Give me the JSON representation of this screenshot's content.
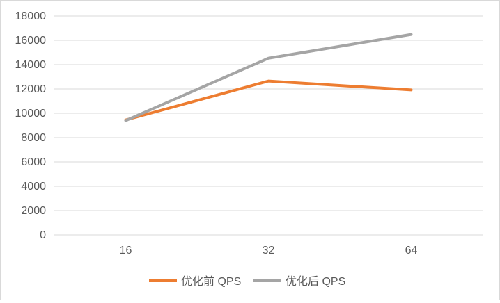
{
  "chart_data": {
    "type": "line",
    "categories": [
      "16",
      "32",
      "64"
    ],
    "series": [
      {
        "name": "优化前 QPS",
        "values": [
          9450,
          12650,
          11920
        ],
        "color": "#ED7D31"
      },
      {
        "name": "优化后 QPS",
        "values": [
          9400,
          14530,
          16480
        ],
        "color": "#A5A5A5"
      }
    ],
    "ylim": [
      0,
      18000
    ],
    "yticks": [
      "0",
      "2000",
      "4000",
      "6000",
      "8000",
      "10000",
      "12000",
      "14000",
      "16000",
      "18000"
    ],
    "grid": true,
    "legend": "bottom",
    "gridline_color": "#d9d9d9",
    "axis_text_color": "#595959"
  }
}
